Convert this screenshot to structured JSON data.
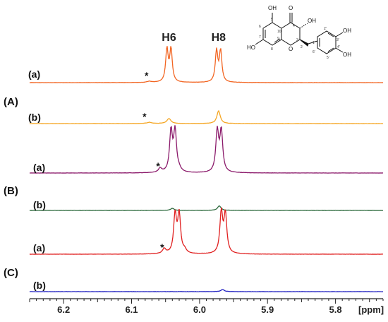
{
  "chart_data": {
    "type": "line",
    "xlabel": "[ppm]",
    "x_ticks": [
      "6.2",
      "6.1",
      "6.0",
      "5.9",
      "5.8"
    ],
    "x_tick_values": [
      6.2,
      6.1,
      6.0,
      5.9,
      5.8
    ],
    "xlim": [
      6.25,
      5.73
    ],
    "x_reversed": true,
    "peak_labels": [
      {
        "text": "H6",
        "ppm": 6.045
      },
      {
        "text": "H8",
        "ppm": 5.972
      }
    ],
    "groups": [
      {
        "label": "(A)",
        "traces": [
          "A-a",
          "A-b"
        ]
      },
      {
        "label": "(B)",
        "traces": [
          "B-a",
          "B-b"
        ]
      },
      {
        "label": "(C)",
        "traces": [
          "C-a",
          "C-b"
        ]
      }
    ],
    "series": [
      {
        "id": "A-a",
        "label": "(a)",
        "color": "#F26522",
        "noise": 0.006,
        "peaks": [
          [
            6.048,
            0.9,
            0.0022
          ],
          [
            6.042,
            0.9,
            0.0022
          ],
          [
            5.975,
            0.85,
            0.0022
          ],
          [
            5.969,
            0.85,
            0.0022
          ],
          [
            6.074,
            0.03,
            0.004
          ]
        ],
        "asterisk_ppm": 6.078
      },
      {
        "id": "A-b",
        "label": "(b)",
        "color": "#F5A623",
        "noise": 0.006,
        "peaks": [
          [
            6.045,
            0.12,
            0.0035
          ],
          [
            5.972,
            0.3,
            0.003
          ],
          [
            6.074,
            0.03,
            0.004
          ]
        ],
        "asterisk_ppm": 6.081
      },
      {
        "id": "B-a",
        "label": "(a)",
        "color": "#8B1A6B",
        "noise": 0.005,
        "peaks": [
          [
            6.042,
            1.0,
            0.0025
          ],
          [
            6.036,
            1.0,
            0.0025
          ],
          [
            5.974,
            1.0,
            0.0025
          ],
          [
            5.968,
            1.0,
            0.0025
          ],
          [
            6.058,
            0.1,
            0.003
          ],
          [
            6.03,
            0.06,
            0.003
          ]
        ],
        "asterisk_ppm": 6.061
      },
      {
        "id": "B-b",
        "label": "(b)",
        "color": "#2E6B3E",
        "noise": 0.006,
        "peaks": [
          [
            6.04,
            0.05,
            0.003
          ],
          [
            5.971,
            0.11,
            0.003
          ]
        ],
        "asterisk_ppm": null
      },
      {
        "id": "C-a",
        "label": "(a)",
        "color": "#E02020",
        "noise": 0.005,
        "peaks": [
          [
            6.036,
            0.95,
            0.0025
          ],
          [
            6.03,
            0.95,
            0.0025
          ],
          [
            5.968,
            1.0,
            0.0025
          ],
          [
            5.962,
            0.95,
            0.0025
          ],
          [
            6.052,
            0.12,
            0.003
          ],
          [
            6.022,
            0.08,
            0.003
          ]
        ],
        "asterisk_ppm": 6.055
      },
      {
        "id": "C-b",
        "label": "(b)",
        "color": "#2020C0",
        "noise": 0.006,
        "peaks": [
          [
            5.966,
            0.05,
            0.003
          ]
        ],
        "asterisk_ppm": null
      }
    ]
  },
  "structure": {
    "atoms": {
      "oh_top": "OH",
      "o_carbonyl": "O",
      "oh_3": "OH",
      "ho_7": "HO",
      "o_ring": "O",
      "oh_3p": "OH",
      "oh_4p": "OH"
    },
    "numbers": {
      "n5": "5",
      "n4": "4",
      "n3": "3",
      "n6": "6",
      "n10": "10",
      "n7": "7",
      "n8": "8",
      "n9": "9",
      "n2": "2",
      "n1p": "1'",
      "n2p": "2'",
      "n3p": "3'",
      "n4p": "4'",
      "n5p": "5'",
      "n6p": "6'"
    }
  },
  "asterisk_symbol": "*"
}
